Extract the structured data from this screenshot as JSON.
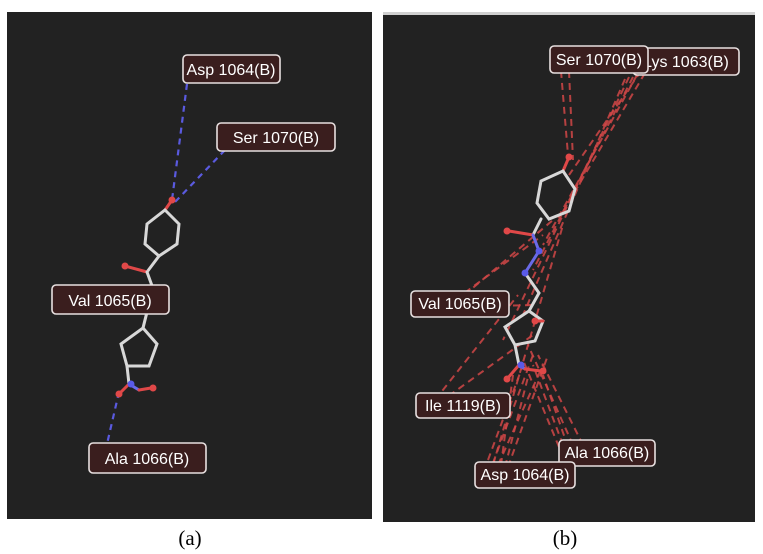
{
  "panels": [
    {
      "id": "a",
      "caption": "(a)",
      "labels": [
        "Asp 1064(B)",
        "Ser 1070(B)",
        "Val 1065(B)",
        "Ala 1066(B)"
      ]
    },
    {
      "id": "b",
      "caption": "(b)",
      "labels": [
        "Ser 1070(B)",
        "Lys 1063(B)",
        "Val 1065(B)",
        "Ile 1119(B)",
        "Ala 1066(B)",
        "Asp 1064(B)"
      ]
    }
  ],
  "colors": {
    "background": "#222222",
    "hydrogen_bond": "#5a5adf",
    "hydrophobic": "#d04646",
    "oxygen": "#e04848",
    "nitrogen": "#5a5ae8",
    "carbon": "#d8d8d8"
  }
}
